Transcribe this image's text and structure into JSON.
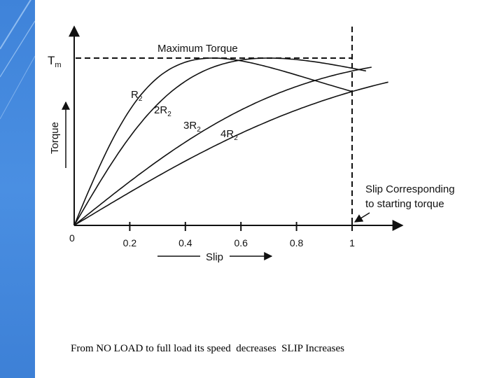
{
  "slide": {
    "accent_color": "#4a8fe2",
    "caption": "From NO LOAD to full load its speed  decreases  SLIP Increases"
  },
  "chart_data": {
    "type": "line",
    "title": "",
    "xlabel": "Slip",
    "ylabel": "Torque",
    "xlim": [
      0,
      1.2
    ],
    "ylim": [
      0,
      1.05
    ],
    "x_ticks": [
      "0.2",
      "0.4",
      "0.6",
      "0.8",
      "1"
    ],
    "origin_label": "0",
    "max_torque_label": "Maximum Torque",
    "tm_label": "T",
    "tm_subscript": "m",
    "max_torque_value": 1.0,
    "slip_annotation_line1": "Slip Corresponding",
    "slip_annotation_line2": "to starting torque",
    "series": [
      {
        "name": "R",
        "subscript": "2",
        "multiplier": "",
        "peak_slip": 0.5,
        "x_end": 1.0
      },
      {
        "name": "R",
        "subscript": "2",
        "multiplier": "2",
        "peak_slip": 0.7,
        "x_end": 1.05
      },
      {
        "name": "R",
        "subscript": "2",
        "multiplier": "3",
        "peak_slip": 1.5,
        "x_end": 1.07
      },
      {
        "name": "R",
        "subscript": "2",
        "multiplier": "4",
        "peak_slip": 2.0,
        "x_end": 1.13
      }
    ]
  }
}
